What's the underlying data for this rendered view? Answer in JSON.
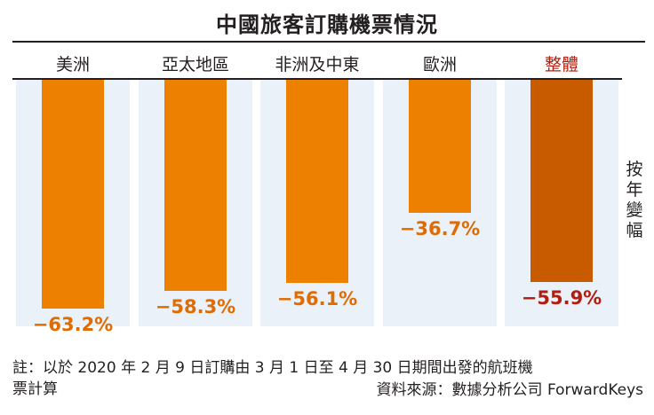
{
  "chart_data": {
    "type": "bar",
    "title": "中國旅客訂購機票情況",
    "side_label": "按年變幅",
    "categories": [
      "美洲",
      "亞太地區",
      "非洲及中東",
      "歐洲",
      "整體"
    ],
    "values": [
      -63.2,
      -58.3,
      -56.1,
      -36.7,
      -55.9
    ],
    "value_labels": [
      "−63.2%",
      "−58.3%",
      "−56.1%",
      "−36.7%",
      "−55.9%"
    ],
    "highlight_index": 4,
    "ylim": [
      0,
      -70
    ],
    "colors": {
      "bar": "#ee8000",
      "bar_highlight": "#c85a00",
      "label": "#e06b00",
      "label_highlight": "#b01e10",
      "panel": "#eaf1f8"
    }
  },
  "footer": {
    "note_line1": "註：以於 2020 年 2 月 9 日訂購由 3 月 1 日至 4 月 30 日期間出發的航班機",
    "note_line2": "票計算",
    "source": "資料來源：數據分析公司 ForwardKeys"
  }
}
